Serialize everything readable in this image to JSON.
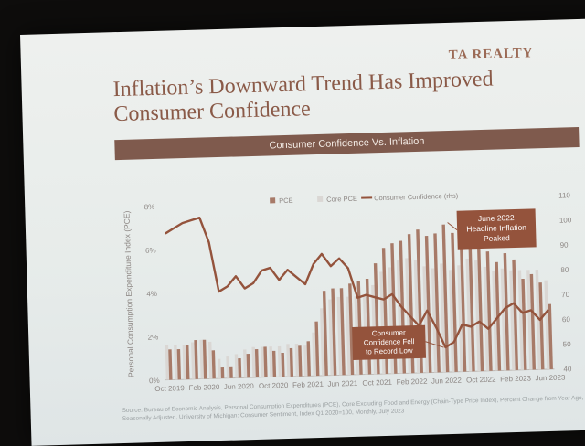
{
  "brand": "TA REALTY",
  "title": "Inflation’s Downward Trend Has Improved Consumer Confidence",
  "banner": "Consumer Confidence Vs. Inflation",
  "source": "Source: Bureau of Economic Analysis, Personal Consumption Expenditures (PCE), Core Excluding Food and Energy (Chain-Type Price Index), Percent Change from Year Ago, Seasonally Adjusted, University of Michigan: Consumer Sentiment, Index Q1 2020=100, Monthly, July 2023",
  "colors": {
    "pce": "#a77a68",
    "core": "#dad7d4",
    "confidence": "#94533c",
    "annotation": "#94533c"
  },
  "chart_data": {
    "type": "bar",
    "title": "",
    "ylabel": "Personal Consumption Expenditure Index (PCE)",
    "y2label": "",
    "ylim": [
      0,
      8
    ],
    "y2lim": [
      40,
      110
    ],
    "y_ticks": [
      "0%",
      "2%",
      "4%",
      "6%",
      "8%"
    ],
    "y2_ticks": [
      "40",
      "50",
      "60",
      "70",
      "80",
      "90",
      "100",
      "110"
    ],
    "x_tick_labels": [
      "Oct 2019",
      "Feb 2020",
      "Jun 2020",
      "Oct 2020",
      "Feb 2021",
      "Jun 2021",
      "Oct 2021",
      "Feb 2022",
      "Jun 2022",
      "Oct 2022",
      "Feb 2023",
      "Jun 2023"
    ],
    "categories": [
      "Oct 2019",
      "Nov 2019",
      "Dec 2019",
      "Jan 2020",
      "Feb 2020",
      "Mar 2020",
      "Apr 2020",
      "May 2020",
      "Jun 2020",
      "Jul 2020",
      "Aug 2020",
      "Sep 2020",
      "Oct 2020",
      "Nov 2020",
      "Dec 2020",
      "Jan 2021",
      "Feb 2021",
      "Mar 2021",
      "Apr 2021",
      "May 2021",
      "Jun 2021",
      "Jul 2021",
      "Aug 2021",
      "Sep 2021",
      "Oct 2021",
      "Nov 2021",
      "Dec 2021",
      "Jan 2022",
      "Feb 2022",
      "Mar 2022",
      "Apr 2022",
      "May 2022",
      "Jun 2022",
      "Jul 2022",
      "Aug 2022",
      "Sep 2022",
      "Oct 2022",
      "Nov 2022",
      "Dec 2022",
      "Jan 2023",
      "Feb 2023",
      "Mar 2023",
      "Apr 2023",
      "May 2023",
      "Jun 2023"
    ],
    "legend": [
      "PCE",
      "Core PCE",
      "Consumer Confidence (rhs)"
    ],
    "legend_position": "top",
    "series": [
      {
        "name": "PCE",
        "axis": "left",
        "values": [
          1.4,
          1.4,
          1.6,
          1.8,
          1.8,
          1.3,
          0.5,
          0.5,
          0.9,
          1.1,
          1.3,
          1.4,
          1.2,
          1.1,
          1.3,
          1.4,
          1.6,
          2.5,
          3.9,
          4.0,
          4.0,
          4.2,
          4.3,
          4.4,
          5.1,
          5.8,
          6.0,
          6.1,
          6.4,
          6.6,
          6.3,
          6.4,
          6.8,
          6.4,
          6.2,
          6.2,
          6.0,
          5.5,
          5.0,
          5.4,
          5.1,
          4.2,
          4.4,
          4.0,
          3.0
        ]
      },
      {
        "name": "Core PCE",
        "axis": "left",
        "values": [
          1.6,
          1.6,
          1.6,
          1.7,
          1.8,
          1.7,
          0.9,
          1.0,
          1.1,
          1.3,
          1.4,
          1.4,
          1.4,
          1.4,
          1.5,
          1.5,
          1.4,
          2.0,
          3.1,
          3.5,
          3.6,
          3.6,
          3.6,
          3.6,
          4.1,
          4.7,
          4.9,
          5.2,
          5.3,
          5.2,
          4.9,
          4.8,
          5.0,
          4.7,
          4.9,
          5.2,
          5.1,
          4.8,
          4.6,
          4.7,
          4.6,
          4.6,
          4.6,
          4.6,
          4.1
        ]
      },
      {
        "name": "Consumer Confidence (rhs)",
        "axis": "right",
        "type": "line",
        "values": [
          99,
          101,
          103,
          104,
          105,
          95,
          75,
          77,
          81,
          76,
          78,
          83,
          84,
          79,
          83,
          80,
          77,
          85,
          89,
          84,
          87,
          83,
          71,
          72,
          71,
          70,
          72,
          67,
          63,
          59,
          65,
          58,
          50,
          52,
          59,
          58,
          60,
          57,
          61,
          65,
          67,
          63,
          64,
          60,
          64
        ]
      }
    ],
    "annotations": [
      {
        "text": "June 2022\nHeadline Inflation\nPeaked",
        "target": "Jun 2022"
      },
      {
        "text": "Consumer\nConfidence Fell\nto Record Low",
        "target": "Jun 2022"
      }
    ]
  }
}
